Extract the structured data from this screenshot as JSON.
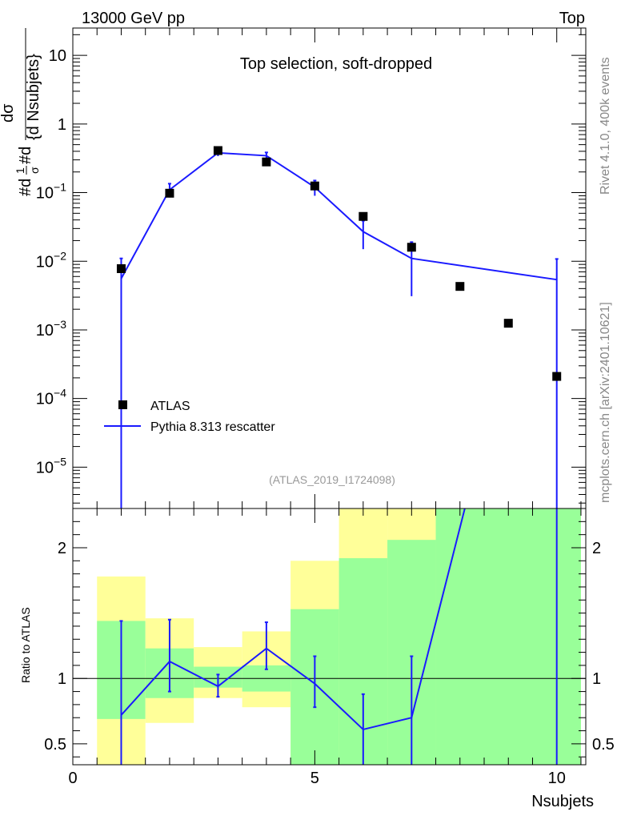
{
  "header": {
    "left": "13000 GeV pp",
    "right": "Top"
  },
  "side": {
    "rivet": "Rivet 4.1.0,  400k events",
    "mcplots": "mcplots.cern.ch [arXiv:2401.10621]"
  },
  "chart_data": [
    {
      "type": "scatter",
      "title": "Top selection, soft-dropped",
      "ylabel": "#d1/σ #d dσ / {d Nsubjets}",
      "ylabel_parts": {
        "frac1_num": "1",
        "frac1_den": "σ",
        "prefix": "#d",
        "mid": " #d",
        "frac2_num": "dσ",
        "frac2_den": "{d Nsubjets}"
      },
      "yscale": "log",
      "ylim": [
        2.5e-06,
        25
      ],
      "xlim": [
        0,
        10.6
      ],
      "yticks": [
        "10",
        "1",
        "10^-1",
        "10^-2",
        "10^-3",
        "10^-4",
        "10^-5"
      ],
      "watermark": "(ATLAS_2019_I1724098)",
      "legend": {
        "placement": "bottom-left",
        "data_label": "ATLAS",
        "mc_label": "Pythia 8.313 rescatter"
      },
      "data": {
        "name": "ATLAS",
        "x": [
          1,
          2,
          3,
          4,
          5,
          6,
          7,
          8,
          9,
          10
        ],
        "y": [
          0.0078,
          0.098,
          0.41,
          0.28,
          0.125,
          0.045,
          0.016,
          0.0043,
          0.00125,
          0.00021
        ]
      },
      "mc": {
        "name": "Pythia 8.313 rescatter",
        "x": [
          1,
          2,
          3,
          4,
          5,
          6,
          7,
          10
        ],
        "y": [
          0.0056,
          0.11,
          0.38,
          0.345,
          0.12,
          0.027,
          0.011,
          0.0054
        ],
        "err_lo": [
          1e-07,
          0.085,
          0.34,
          0.31,
          0.09,
          0.015,
          0.0031,
          1e-07
        ],
        "err_hi": [
          0.011,
          0.135,
          0.42,
          0.385,
          0.15,
          0.039,
          0.019,
          0.0108
        ]
      }
    },
    {
      "type": "line",
      "ylabel": "Ratio to ATLAS",
      "xlabel": "Nsubjets",
      "xlim": [
        0,
        10.6
      ],
      "ylim": [
        0.34,
        2.3
      ],
      "yticks": [
        "0.5",
        "1",
        "2"
      ],
      "xticks": [
        "0",
        "5",
        "10"
      ],
      "bands": [
        {
          "x0": 0.5,
          "x1": 1.5,
          "green": [
            0.69,
            1.44
          ],
          "yellow": [
            0.34,
            1.78
          ]
        },
        {
          "x0": 1.5,
          "x1": 2.5,
          "green": [
            0.85,
            1.23
          ],
          "yellow": [
            0.66,
            1.46
          ]
        },
        {
          "x0": 2.5,
          "x1": 3.5,
          "green": [
            0.93,
            1.09
          ],
          "yellow": [
            0.85,
            1.24
          ]
        },
        {
          "x0": 3.5,
          "x1": 4.5,
          "green": [
            0.9,
            1.1
          ],
          "yellow": [
            0.78,
            1.36
          ]
        },
        {
          "x0": 4.5,
          "x1": 5.5,
          "green": [
            0.34,
            1.53
          ],
          "yellow": [
            0.34,
            1.9
          ]
        },
        {
          "x0": 5.5,
          "x1": 6.5,
          "green": [
            0.34,
            1.92
          ],
          "yellow": [
            0.34,
            2.3
          ]
        },
        {
          "x0": 6.5,
          "x1": 7.5,
          "green": [
            0.34,
            2.06
          ],
          "yellow": [
            0.34,
            2.3
          ]
        },
        {
          "x0": 7.5,
          "x1": 10.5,
          "green": [
            0.34,
            2.3
          ],
          "yellow": [
            0.34,
            2.3
          ]
        }
      ],
      "ratio": {
        "x": [
          1,
          2,
          3,
          4,
          5,
          6,
          7,
          8.1
        ],
        "y": [
          0.72,
          1.13,
          0.94,
          1.23,
          0.96,
          0.61,
          0.7,
          2.3
        ],
        "err_lo": [
          0.34,
          0.9,
          0.86,
          1.07,
          0.78,
          0.34,
          0.34,
          null
        ],
        "err_hi": [
          1.44,
          1.45,
          1.03,
          1.43,
          1.17,
          0.88,
          1.17,
          null
        ]
      },
      "mc_last": {
        "x": 10,
        "err_lo": 0.34
      }
    }
  ]
}
